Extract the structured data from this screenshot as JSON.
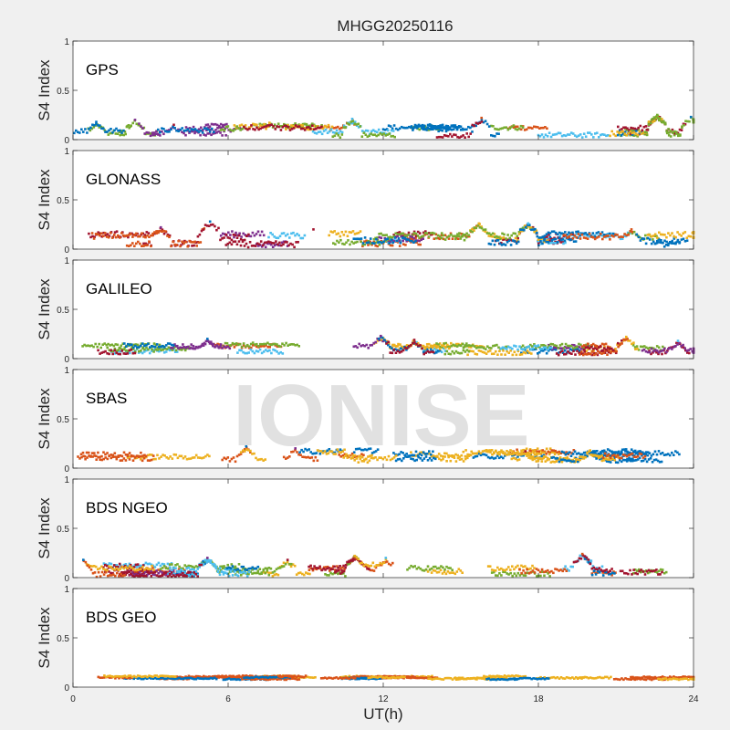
{
  "title": "MHGG20250116",
  "watermark": "IONISE",
  "xlabel": "UT(h)",
  "x_ticks": [
    "0",
    "6",
    "12",
    "18",
    "24"
  ],
  "background": "#f0f0f0",
  "axes_background": "#ffffff",
  "series_colors": [
    "#0072BD",
    "#D95319",
    "#EDB120",
    "#7E2F8E",
    "#77AC30",
    "#4DBEEE",
    "#A2142F"
  ],
  "chart_data": [
    {
      "type": "scatter",
      "panel_label": "GPS",
      "ylabel": "S4 Index",
      "y_ticks": [
        "0",
        "0.5",
        "1"
      ],
      "xlim": [
        0,
        24
      ],
      "ylim": [
        0,
        1
      ],
      "x_ticks": [
        0,
        6,
        12,
        18,
        24
      ],
      "grid": false,
      "baseline_range": [
        0.04,
        0.14
      ],
      "peaks": [
        [
          0.9,
          0.18
        ],
        [
          2.4,
          0.2
        ],
        [
          3.9,
          0.15
        ],
        [
          7.6,
          0.17
        ],
        [
          10.8,
          0.21
        ],
        [
          15.8,
          0.22
        ],
        [
          22.6,
          0.25
        ],
        [
          23.9,
          0.23
        ]
      ],
      "num_series": 7
    },
    {
      "type": "scatter",
      "panel_label": "GLONASS",
      "ylabel": "S4 Index",
      "y_ticks": [
        "0",
        "0.5",
        "1"
      ],
      "xlim": [
        0,
        24
      ],
      "ylim": [
        0,
        1
      ],
      "x_ticks": [
        0,
        6,
        12,
        18,
        24
      ],
      "grid": false,
      "baseline_range": [
        0.04,
        0.16
      ],
      "peaks": [
        [
          5.3,
          0.28
        ],
        [
          3.4,
          0.22
        ],
        [
          9.3,
          0.2
        ],
        [
          15.7,
          0.26
        ],
        [
          17.6,
          0.26
        ],
        [
          21.6,
          0.2
        ]
      ],
      "num_series": 7
    },
    {
      "type": "scatter",
      "panel_label": "GALILEO",
      "ylabel": "S4 Index",
      "y_ticks": [
        "0",
        "0.5",
        "1"
      ],
      "xlim": [
        0,
        24
      ],
      "ylim": [
        0,
        1
      ],
      "x_ticks": [
        0,
        6,
        12,
        18,
        24
      ],
      "grid": false,
      "baseline_range": [
        0.05,
        0.14
      ],
      "peaks": [
        [
          5.2,
          0.2
        ],
        [
          11.9,
          0.23
        ],
        [
          13.2,
          0.19
        ],
        [
          21.4,
          0.22
        ],
        [
          23.4,
          0.18
        ]
      ],
      "num_series": 7
    },
    {
      "type": "scatter",
      "panel_label": "SBAS",
      "ylabel": "S4 Index",
      "y_ticks": [
        "0",
        "0.5",
        "1"
      ],
      "xlim": [
        0,
        24
      ],
      "ylim": [
        0,
        1
      ],
      "x_ticks": [
        0,
        6,
        12,
        18,
        24
      ],
      "grid": false,
      "baseline_range": [
        0.08,
        0.18
      ],
      "peaks": [
        [
          6.7,
          0.22
        ],
        [
          8.6,
          0.2
        ],
        [
          17.5,
          0.17
        ],
        [
          20.0,
          0.18
        ]
      ],
      "num_series": 3
    },
    {
      "type": "scatter",
      "panel_label": "BDS NGEO",
      "ylabel": "S4 Index",
      "y_ticks": [
        "0",
        "0.5",
        "1"
      ],
      "xlim": [
        0,
        24
      ],
      "ylim": [
        0,
        1
      ],
      "x_ticks": [
        0,
        6,
        12,
        18,
        24
      ],
      "grid": false,
      "baseline_range": [
        0.03,
        0.13
      ],
      "peaks": [
        [
          0.4,
          0.18
        ],
        [
          5.2,
          0.2
        ],
        [
          8.3,
          0.18
        ],
        [
          10.9,
          0.22
        ],
        [
          12.1,
          0.2
        ],
        [
          19.7,
          0.24
        ]
      ],
      "num_series": 7
    },
    {
      "type": "scatter",
      "panel_label": "BDS GEO",
      "ylabel": "S4 Index",
      "y_ticks": [
        "0",
        "0.5",
        "1"
      ],
      "xlim": [
        0,
        24
      ],
      "ylim": [
        0,
        1
      ],
      "x_ticks": [
        0,
        6,
        12,
        18,
        24
      ],
      "grid": false,
      "baseline_range": [
        0.08,
        0.11
      ],
      "peaks": [],
      "num_series": 3
    }
  ]
}
